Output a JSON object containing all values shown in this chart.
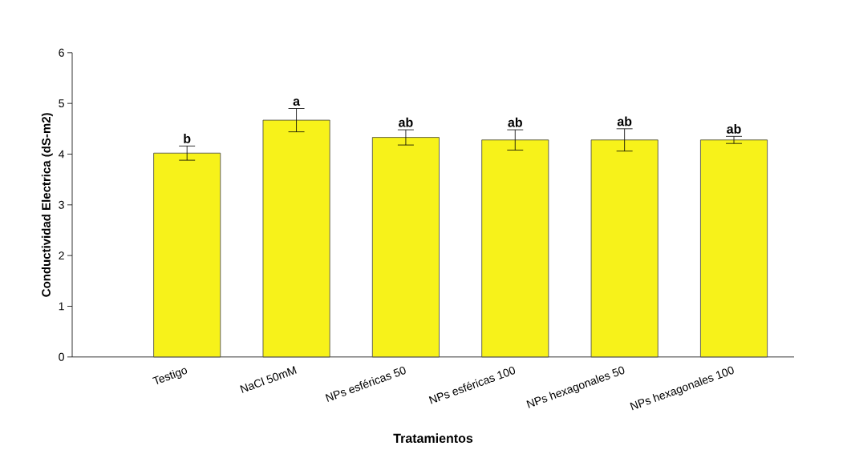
{
  "chart_data": {
    "type": "bar",
    "xlabel": "Tratamientos",
    "ylabel": "Conductividad Electrica (dS-m2)",
    "categories": [
      "Testigo",
      "NaCl 50mM",
      "NPs esféricas 50",
      "NPs esféricas 100",
      "NPs hexagonales 50",
      "NPs hexagonales 100"
    ],
    "values": [
      4.02,
      4.67,
      4.33,
      4.28,
      4.28,
      4.28
    ],
    "errors": [
      0.14,
      0.23,
      0.15,
      0.2,
      0.22,
      0.07
    ],
    "color": "#f7f21a",
    "ylim": [
      0,
      6
    ],
    "yticks": [
      0,
      1,
      2,
      3,
      4,
      5,
      6
    ],
    "annotations": [
      "b",
      "a",
      "ab",
      "ab",
      "ab",
      "ab"
    ]
  }
}
